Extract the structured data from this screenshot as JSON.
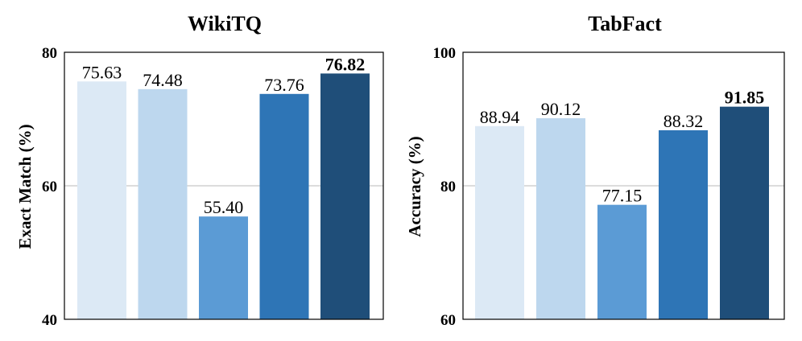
{
  "chart_data": [
    {
      "type": "bar",
      "title": "WikiTQ",
      "ylabel": "Exact Match (%)",
      "xlabel": "",
      "ylim": [
        40,
        80
      ],
      "yticks": [
        40,
        60,
        80
      ],
      "grid": true,
      "values": [
        75.63,
        74.48,
        55.4,
        73.76,
        76.82
      ],
      "value_labels": [
        "75.63",
        "74.48",
        "55.40",
        "73.76",
        "76.82"
      ],
      "highlight_index": 4,
      "colors": [
        "#dce9f5",
        "#bdd7ee",
        "#5b9bd5",
        "#2e75b6",
        "#1f4e79"
      ]
    },
    {
      "type": "bar",
      "title": "TabFact",
      "ylabel": "Accuracy (%)",
      "xlabel": "",
      "ylim": [
        60,
        100
      ],
      "yticks": [
        60,
        80,
        100
      ],
      "grid": true,
      "values": [
        88.94,
        90.12,
        77.15,
        88.32,
        91.85
      ],
      "value_labels": [
        "88.94",
        "90.12",
        "77.15",
        "88.32",
        "91.85"
      ],
      "highlight_index": 4,
      "colors": [
        "#dce9f5",
        "#bdd7ee",
        "#5b9bd5",
        "#2e75b6",
        "#1f4e79"
      ]
    }
  ]
}
